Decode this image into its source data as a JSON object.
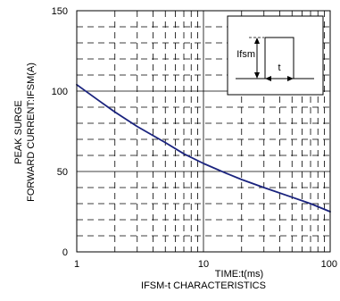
{
  "chart_data": {
    "type": "line",
    "x_scale": "log",
    "xlim": [
      1,
      100
    ],
    "ylim": [
      0,
      150
    ],
    "x_ticks": [
      1,
      10,
      100
    ],
    "x_tick_labels": [
      "1",
      "10",
      "100"
    ],
    "y_ticks": [
      0,
      50,
      100,
      150
    ],
    "y_tick_labels": [
      "0",
      "50",
      "100",
      "150"
    ],
    "y_minor_step": 10,
    "xlabel": "TIME:t(ms)",
    "ylabel_line1": "PEAK SURGE",
    "ylabel_line2": "FORWARD CURRENT:IFSM(A)",
    "caption": "IFSM-t CHARACTERISTICS",
    "grid": true,
    "line_color": "#1a237e",
    "series": [
      {
        "x": [
          1,
          1.5,
          2,
          3,
          5,
          7,
          10,
          15,
          20,
          30,
          50,
          70,
          100
        ],
        "y": [
          104,
          94,
          87,
          78,
          68,
          61,
          55,
          49,
          45,
          40,
          34,
          30,
          25
        ]
      }
    ],
    "inset": {
      "label_current": "Ifsm",
      "label_time": "t"
    }
  }
}
